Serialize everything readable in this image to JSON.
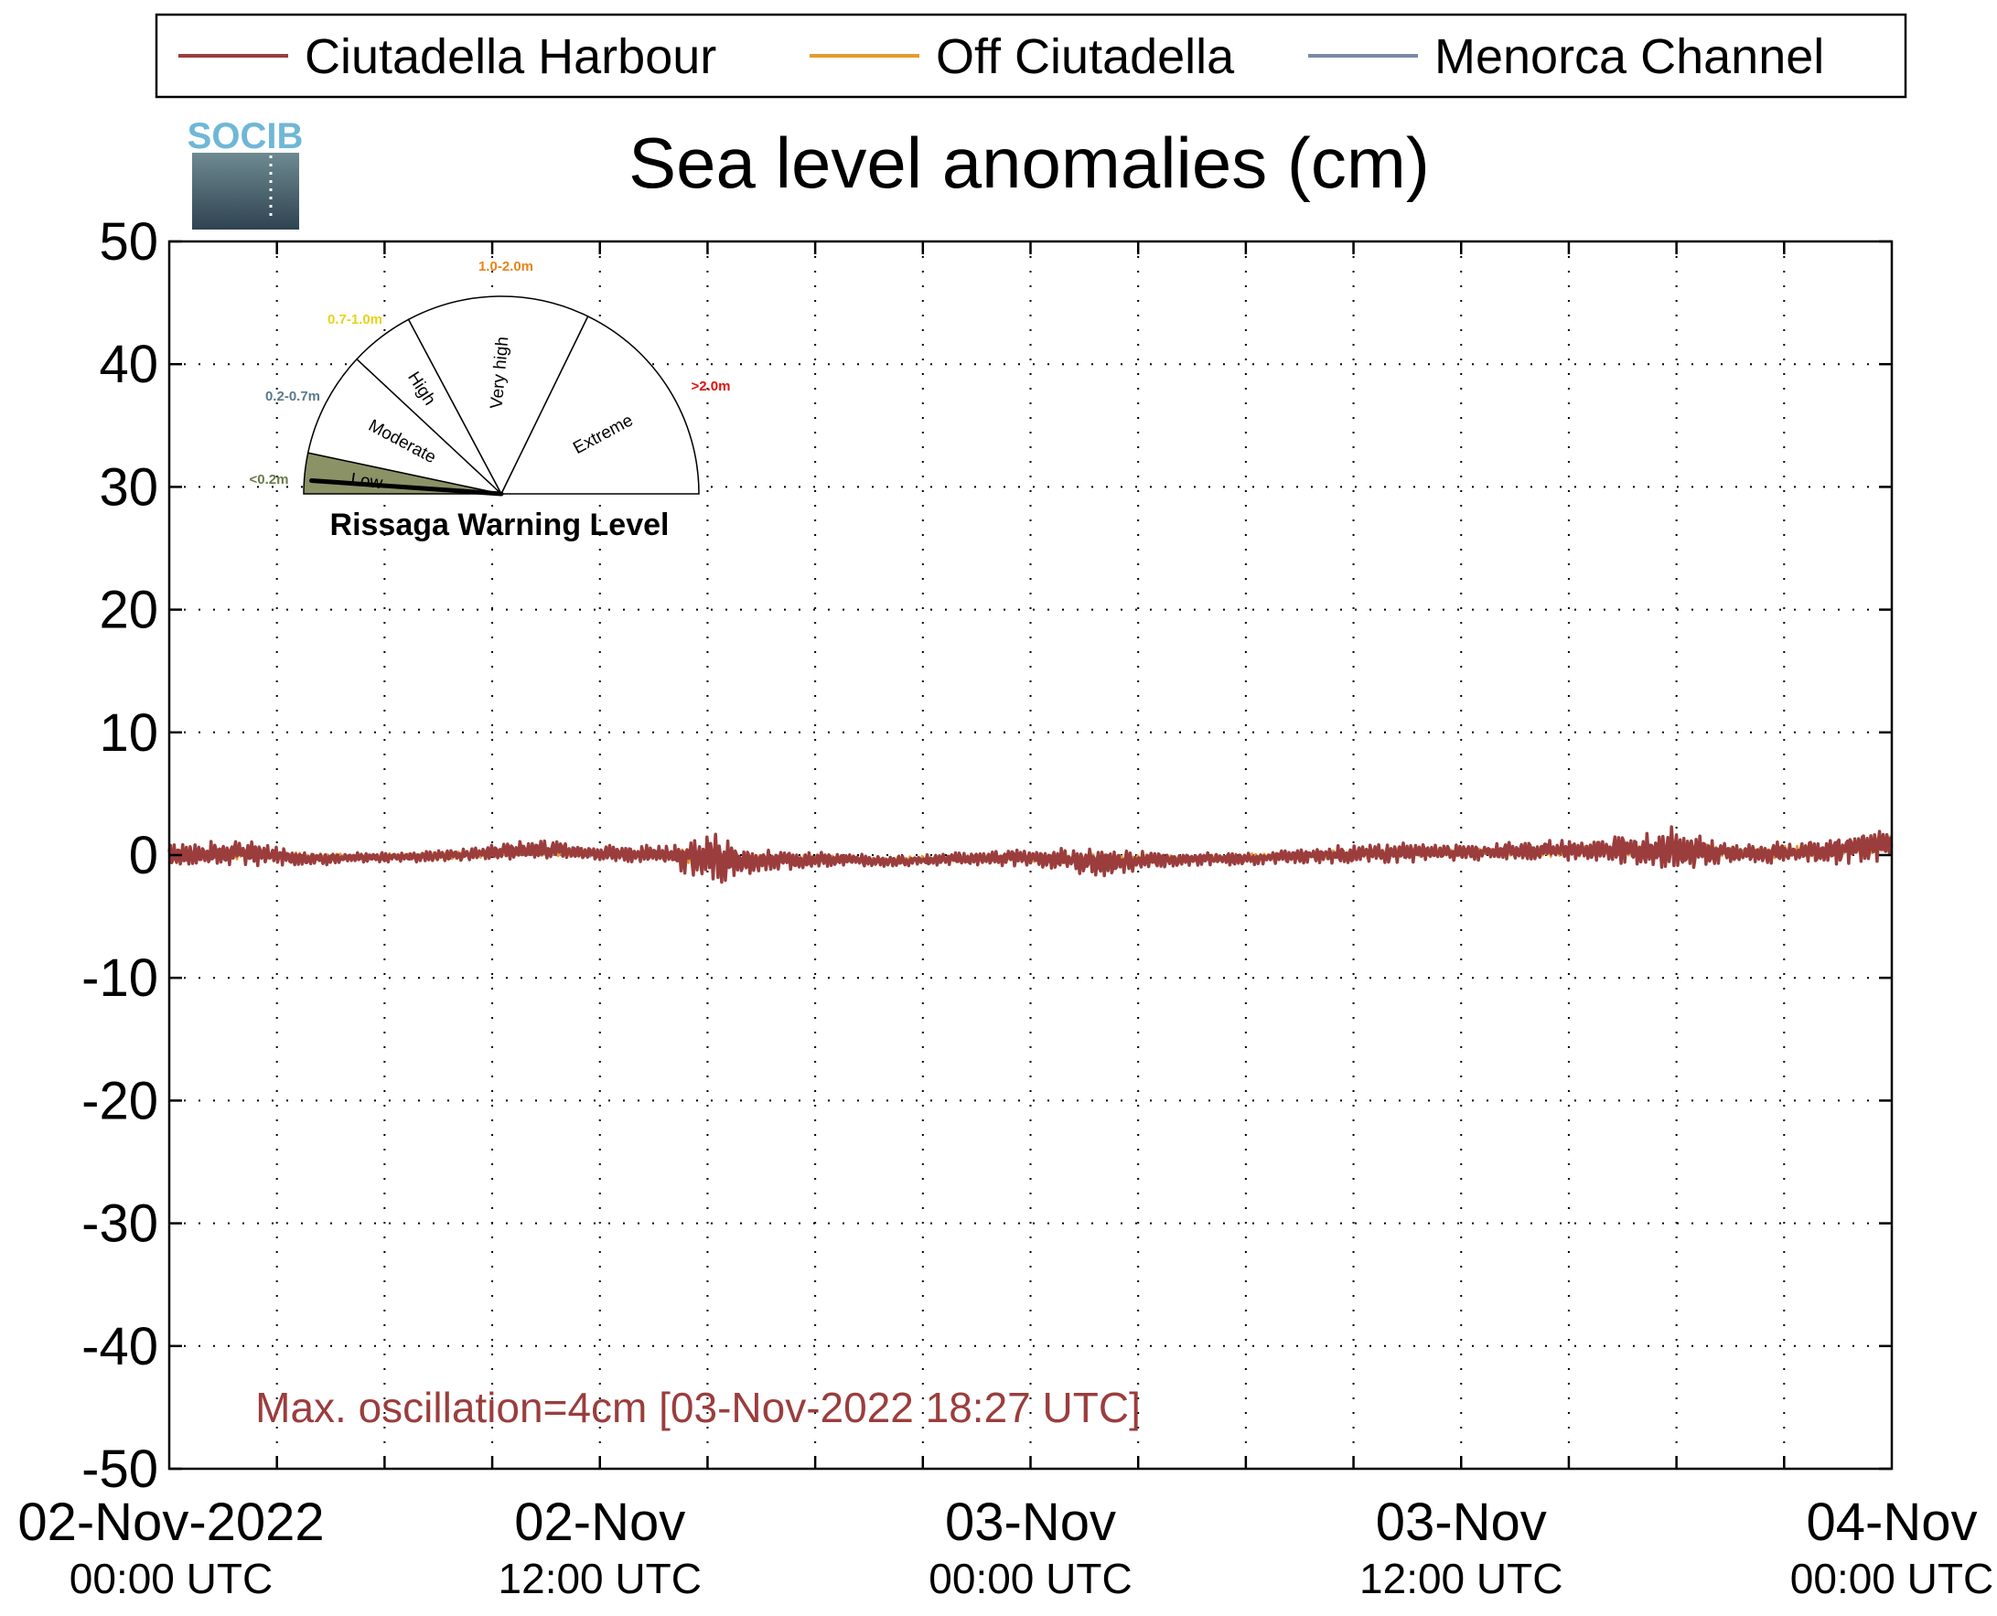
{
  "chart_data": {
    "type": "line",
    "title": "Sea level anomalies (cm)",
    "xlabel": "",
    "ylabel": "",
    "ylim": [
      -50,
      50
    ],
    "yticks": [
      50,
      40,
      30,
      20,
      10,
      0,
      -10,
      -20,
      -30,
      -40,
      -50
    ],
    "xlim": [
      "2022-11-02 00:00",
      "2022-11-04 00:00"
    ],
    "xticks": [
      {
        "t": "2022-11-02 00:00",
        "line1": "02-Nov-2022",
        "line2": "00:00 UTC"
      },
      {
        "t": "2022-11-02 12:00",
        "line1": "02-Nov",
        "line2": "12:00 UTC"
      },
      {
        "t": "2022-11-03 00:00",
        "line1": "03-Nov",
        "line2": "00:00 UTC"
      },
      {
        "t": "2022-11-03 12:00",
        "line1": "03-Nov",
        "line2": "12:00 UTC"
      },
      {
        "t": "2022-11-04 00:00",
        "line1": "04-Nov",
        "line2": "00:00 UTC"
      }
    ],
    "minor_tick_hours": 3,
    "grid": true,
    "legend_position": "top",
    "time_hours": [
      0,
      2,
      4,
      6,
      8,
      10,
      12,
      14,
      15,
      16,
      18,
      20,
      22,
      24,
      26,
      28,
      30,
      32,
      34,
      36,
      38,
      40,
      42,
      44,
      46,
      48
    ],
    "series": [
      {
        "name": "Ciutadella Harbour",
        "color": "#9b3d3d",
        "values": [
          0.0,
          0.2,
          -0.3,
          -0.2,
          0.0,
          0.5,
          0.2,
          0.0,
          -0.3,
          -0.6,
          -0.3,
          -0.5,
          -0.3,
          -0.2,
          -0.6,
          -0.4,
          -0.3,
          0.0,
          0.2,
          0.2,
          0.4,
          0.4,
          0.5,
          0.1,
          0.3,
          0.9
        ],
        "amplitude": [
          0.8,
          1.0,
          0.5,
          0.4,
          0.5,
          0.7,
          0.6,
          0.8,
          2.2,
          1.0,
          0.6,
          0.4,
          0.5,
          0.7,
          1.1,
          0.5,
          0.5,
          0.6,
          0.8,
          0.6,
          0.7,
          0.9,
          1.8,
          0.7,
          1.0,
          1.3
        ]
      },
      {
        "name": "Off Ciutadella",
        "color": "#e89a2c",
        "values": [
          0.0,
          0.1,
          -0.2,
          -0.1,
          0.0,
          0.3,
          0.1,
          0.0,
          -0.2,
          -0.4,
          -0.3,
          -0.4,
          -0.3,
          -0.2,
          -0.4,
          -0.3,
          -0.2,
          0.0,
          0.2,
          0.2,
          0.3,
          0.4,
          0.5,
          0.2,
          0.3,
          0.9
        ],
        "amplitude": [
          0.3,
          0.4,
          0.3,
          0.2,
          0.3,
          0.3,
          0.3,
          0.4,
          0.6,
          0.4,
          0.3,
          0.2,
          0.3,
          0.3,
          0.4,
          0.3,
          0.3,
          0.3,
          0.4,
          0.3,
          0.4,
          0.5,
          0.7,
          0.4,
          0.5,
          0.6
        ]
      },
      {
        "name": "Menorca Channel",
        "color": "#7a8aa6",
        "values": [
          0.0,
          0.0,
          -0.1,
          -0.1,
          0.0,
          0.1,
          0.0,
          0.0,
          -0.1,
          -0.3,
          -0.3,
          -0.4,
          -0.3,
          -0.2,
          -0.3,
          -0.3,
          -0.2,
          0.0,
          0.1,
          0.2,
          0.2,
          0.3,
          0.4,
          0.3,
          0.4,
          0.8
        ],
        "amplitude": [
          0.1,
          0.1,
          0.1,
          0.1,
          0.1,
          0.1,
          0.1,
          0.1,
          0.2,
          0.1,
          0.1,
          0.1,
          0.1,
          0.1,
          0.1,
          0.1,
          0.1,
          0.1,
          0.1,
          0.1,
          0.1,
          0.1,
          0.2,
          0.1,
          0.1,
          0.2
        ]
      }
    ],
    "annotation": {
      "text": "Max. oscillation=4cm [03-Nov-2022 18:27 UTC]",
      "color": "#9b3d3d",
      "anchor_hours": 2.4,
      "anchor_y": -45
    }
  },
  "logo": {
    "text": "SOCIB",
    "color": "#6fb7d6"
  },
  "gauge": {
    "title": "Rissaga Warning Level",
    "current_level": "Low",
    "segments": [
      {
        "name": "Low",
        "range": "<0.2m",
        "range_color": "#6b7a4a",
        "fill": "#8a9266"
      },
      {
        "name": "Moderate",
        "range": "0.2-0.7m",
        "range_color": "#5a7a8a",
        "fill": "#ffffff"
      },
      {
        "name": "High",
        "range": "0.7-1.0m",
        "range_color": "#e8d21a",
        "fill": "#ffffff"
      },
      {
        "name": "Very high",
        "range": "1.0-2.0m",
        "range_color": "#e8851a",
        "fill": "#ffffff"
      },
      {
        "name": "Extreme",
        "range": ">2.0m",
        "range_color": "#e01010",
        "fill": "#ffffff"
      }
    ]
  }
}
